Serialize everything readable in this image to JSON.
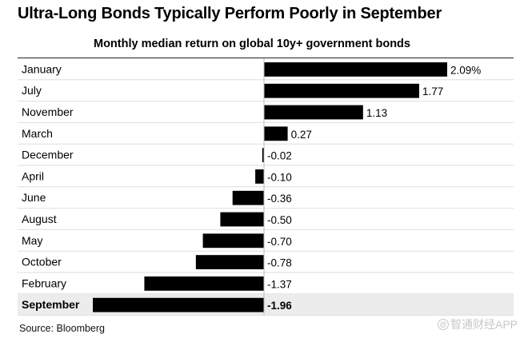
{
  "chart_data": {
    "type": "bar",
    "orientation": "horizontal",
    "title": "Ultra-Long Bonds Typically Perform Poorly in September",
    "subtitle": "Monthly median return on global 10y+ government bonds",
    "categories": [
      "January",
      "July",
      "November",
      "March",
      "December",
      "April",
      "June",
      "August",
      "May",
      "October",
      "February",
      "September"
    ],
    "values": [
      2.09,
      1.77,
      1.13,
      0.27,
      -0.02,
      -0.1,
      -0.36,
      -0.5,
      -0.7,
      -0.78,
      -1.37,
      -1.96
    ],
    "value_labels": [
      "2.09%",
      "1.77",
      "1.13",
      "0.27",
      "-0.02",
      "-0.10",
      "-0.36",
      "-0.50",
      "-0.70",
      "-0.78",
      "-1.37",
      "-1.96"
    ],
    "highlight_category": "September",
    "xlim": [
      -1.96,
      2.09
    ],
    "bar_color": "#000000",
    "highlight_background": "#ececec",
    "grid": false,
    "legend": "none"
  },
  "source": "Source: Bloomberg",
  "watermark": {
    "icon": "at-icon",
    "text": "智通财经APP"
  }
}
